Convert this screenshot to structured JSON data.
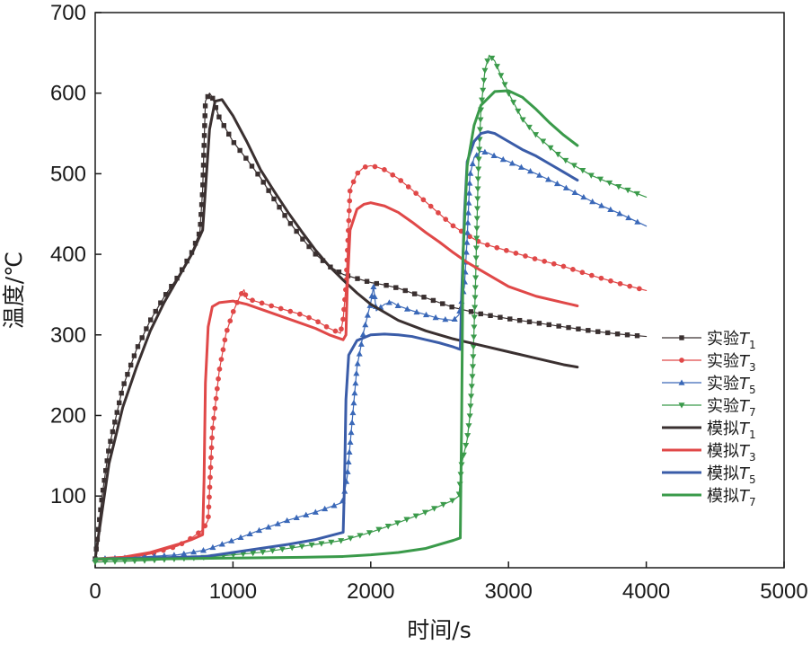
{
  "chart_data": {
    "type": "line",
    "title": "",
    "xlabel": "时间/s",
    "ylabel": "温度/℃",
    "xlim": [
      0,
      5000
    ],
    "ylim": [
      11,
      700
    ],
    "x_ticks": [
      0,
      1000,
      2000,
      3000,
      4000,
      5000
    ],
    "y_ticks": [
      100,
      200,
      300,
      400,
      500,
      600,
      700
    ],
    "grid": false,
    "legend_position": "right",
    "series": [
      {
        "name": "实验T1",
        "label_prefix": "实验",
        "label_var": "T",
        "label_sub": "1",
        "color": "#3a3030",
        "style": "experiment",
        "marker": "square",
        "points": [
          [
            0,
            22
          ],
          [
            50,
            100
          ],
          [
            100,
            160
          ],
          [
            200,
            235
          ],
          [
            300,
            282
          ],
          [
            400,
            318
          ],
          [
            500,
            347
          ],
          [
            600,
            372
          ],
          [
            700,
            402
          ],
          [
            760,
            428
          ],
          [
            780,
            480
          ],
          [
            800,
            590
          ],
          [
            830,
            600
          ],
          [
            850,
            595
          ],
          [
            900,
            570
          ],
          [
            1000,
            540
          ],
          [
            1100,
            518
          ],
          [
            1200,
            495
          ],
          [
            1300,
            468
          ],
          [
            1400,
            442
          ],
          [
            1500,
            420
          ],
          [
            1600,
            400
          ],
          [
            1700,
            385
          ],
          [
            1800,
            375
          ],
          [
            1900,
            370
          ],
          [
            2000,
            365
          ],
          [
            2100,
            362
          ],
          [
            2200,
            358
          ],
          [
            2300,
            352
          ],
          [
            2400,
            346
          ],
          [
            2500,
            340
          ],
          [
            2600,
            334
          ],
          [
            2700,
            330
          ],
          [
            2800,
            326
          ],
          [
            2900,
            323
          ],
          [
            3000,
            320
          ],
          [
            3200,
            315
          ],
          [
            3400,
            310
          ],
          [
            3600,
            305
          ],
          [
            3800,
            301
          ],
          [
            4000,
            298
          ]
        ]
      },
      {
        "name": "实验T3",
        "label_prefix": "实验",
        "label_var": "T",
        "label_sub": "3",
        "color": "#e04848",
        "style": "experiment",
        "marker": "circle",
        "points": [
          [
            0,
            20
          ],
          [
            200,
            22
          ],
          [
            400,
            28
          ],
          [
            600,
            38
          ],
          [
            700,
            48
          ],
          [
            780,
            58
          ],
          [
            820,
            70
          ],
          [
            850,
            180
          ],
          [
            900,
            255
          ],
          [
            950,
            302
          ],
          [
            1000,
            328
          ],
          [
            1050,
            348
          ],
          [
            1080,
            356
          ],
          [
            1100,
            345
          ],
          [
            1200,
            340
          ],
          [
            1300,
            335
          ],
          [
            1400,
            330
          ],
          [
            1500,
            325
          ],
          [
            1600,
            318
          ],
          [
            1700,
            308
          ],
          [
            1780,
            302
          ],
          [
            1800,
            320
          ],
          [
            1820,
            360
          ],
          [
            1850,
            480
          ],
          [
            1900,
            500
          ],
          [
            1950,
            508
          ],
          [
            2000,
            510
          ],
          [
            2050,
            508
          ],
          [
            2100,
            505
          ],
          [
            2200,
            494
          ],
          [
            2300,
            480
          ],
          [
            2400,
            465
          ],
          [
            2500,
            450
          ],
          [
            2600,
            435
          ],
          [
            2700,
            424
          ],
          [
            2800,
            414
          ],
          [
            3000,
            404
          ],
          [
            3200,
            394
          ],
          [
            3400,
            385
          ],
          [
            3600,
            374
          ],
          [
            3800,
            364
          ],
          [
            4000,
            355
          ]
        ]
      },
      {
        "name": "实验T5",
        "label_prefix": "实验",
        "label_var": "T",
        "label_sub": "5",
        "color": "#3a68b8",
        "style": "experiment",
        "marker": "triangle-up",
        "points": [
          [
            0,
            22
          ],
          [
            300,
            24
          ],
          [
            600,
            27
          ],
          [
            800,
            33
          ],
          [
            1000,
            45
          ],
          [
            1200,
            58
          ],
          [
            1400,
            70
          ],
          [
            1600,
            80
          ],
          [
            1780,
            91
          ],
          [
            1800,
            95
          ],
          [
            1830,
            125
          ],
          [
            1900,
            260
          ],
          [
            1950,
            305
          ],
          [
            2000,
            340
          ],
          [
            2020,
            360
          ],
          [
            2040,
            330
          ],
          [
            2100,
            338
          ],
          [
            2150,
            341
          ],
          [
            2200,
            336
          ],
          [
            2300,
            330
          ],
          [
            2400,
            325
          ],
          [
            2500,
            320
          ],
          [
            2600,
            318
          ],
          [
            2640,
            325
          ],
          [
            2680,
            360
          ],
          [
            2700,
            420
          ],
          [
            2720,
            498
          ],
          [
            2750,
            520
          ],
          [
            2800,
            528
          ],
          [
            2850,
            526
          ],
          [
            2900,
            522
          ],
          [
            3000,
            515
          ],
          [
            3200,
            500
          ],
          [
            3400,
            484
          ],
          [
            3600,
            466
          ],
          [
            3800,
            451
          ],
          [
            4000,
            435
          ]
        ]
      },
      {
        "name": "实验T7",
        "label_prefix": "实验",
        "label_var": "T",
        "label_sub": "7",
        "color": "#3a9a4a",
        "style": "experiment",
        "marker": "triangle-down",
        "points": [
          [
            0,
            18
          ],
          [
            400,
            20
          ],
          [
            800,
            24
          ],
          [
            1200,
            30
          ],
          [
            1600,
            40
          ],
          [
            1800,
            45
          ],
          [
            2000,
            55
          ],
          [
            2200,
            67
          ],
          [
            2400,
            80
          ],
          [
            2600,
            95
          ],
          [
            2640,
            100
          ],
          [
            2660,
            140
          ],
          [
            2700,
            170
          ],
          [
            2720,
            200
          ],
          [
            2740,
            255
          ],
          [
            2760,
            360
          ],
          [
            2780,
            500
          ],
          [
            2800,
            580
          ],
          [
            2830,
            630
          ],
          [
            2860,
            647
          ],
          [
            2900,
            640
          ],
          [
            3000,
            600
          ],
          [
            3100,
            568
          ],
          [
            3200,
            548
          ],
          [
            3300,
            533
          ],
          [
            3400,
            518
          ],
          [
            3600,
            498
          ],
          [
            3800,
            484
          ],
          [
            4000,
            471
          ]
        ]
      },
      {
        "name": "模拟T1",
        "label_prefix": "模拟",
        "label_var": "T",
        "label_sub": "1",
        "color": "#3a3030",
        "style": "simulation",
        "marker": "none",
        "points": [
          [
            0,
            22
          ],
          [
            100,
            140
          ],
          [
            200,
            210
          ],
          [
            300,
            260
          ],
          [
            400,
            305
          ],
          [
            500,
            340
          ],
          [
            600,
            370
          ],
          [
            700,
            400
          ],
          [
            780,
            430
          ],
          [
            800,
            480
          ],
          [
            830,
            555
          ],
          [
            870,
            590
          ],
          [
            920,
            592
          ],
          [
            1000,
            572
          ],
          [
            1100,
            540
          ],
          [
            1200,
            505
          ],
          [
            1300,
            478
          ],
          [
            1400,
            452
          ],
          [
            1500,
            428
          ],
          [
            1600,
            405
          ],
          [
            1700,
            385
          ],
          [
            1800,
            368
          ],
          [
            1900,
            352
          ],
          [
            2000,
            338
          ],
          [
            2200,
            318
          ],
          [
            2400,
            305
          ],
          [
            2600,
            295
          ],
          [
            2800,
            287
          ],
          [
            3000,
            279
          ],
          [
            3200,
            271
          ],
          [
            3400,
            263
          ],
          [
            3500,
            260
          ]
        ]
      },
      {
        "name": "模拟T3",
        "label_prefix": "模拟",
        "label_var": "T",
        "label_sub": "3",
        "color": "#e04848",
        "style": "simulation",
        "marker": "none",
        "points": [
          [
            0,
            22
          ],
          [
            200,
            24
          ],
          [
            400,
            30
          ],
          [
            600,
            40
          ],
          [
            700,
            46
          ],
          [
            780,
            52
          ],
          [
            790,
            120
          ],
          [
            800,
            240
          ],
          [
            820,
            310
          ],
          [
            850,
            335
          ],
          [
            900,
            340
          ],
          [
            1000,
            342
          ],
          [
            1100,
            338
          ],
          [
            1200,
            332
          ],
          [
            1300,
            326
          ],
          [
            1400,
            320
          ],
          [
            1500,
            314
          ],
          [
            1600,
            308
          ],
          [
            1700,
            300
          ],
          [
            1800,
            294
          ],
          [
            1820,
            300
          ],
          [
            1830,
            360
          ],
          [
            1850,
            430
          ],
          [
            1900,
            456
          ],
          [
            1950,
            462
          ],
          [
            2000,
            464
          ],
          [
            2100,
            460
          ],
          [
            2200,
            452
          ],
          [
            2300,
            440
          ],
          [
            2400,
            427
          ],
          [
            2500,
            415
          ],
          [
            2600,
            402
          ],
          [
            2700,
            390
          ],
          [
            2800,
            380
          ],
          [
            3000,
            360
          ],
          [
            3200,
            348
          ],
          [
            3400,
            340
          ],
          [
            3500,
            336
          ]
        ]
      },
      {
        "name": "模拟T5",
        "label_prefix": "模拟",
        "label_var": "T",
        "label_sub": "5",
        "color": "#3a5ca8",
        "style": "simulation",
        "marker": "none",
        "points": [
          [
            0,
            22
          ],
          [
            400,
            23
          ],
          [
            800,
            25
          ],
          [
            1000,
            30
          ],
          [
            1200,
            35
          ],
          [
            1400,
            40
          ],
          [
            1600,
            46
          ],
          [
            1800,
            55
          ],
          [
            1810,
            120
          ],
          [
            1820,
            220
          ],
          [
            1840,
            275
          ],
          [
            1900,
            293
          ],
          [
            2000,
            300
          ],
          [
            2100,
            301
          ],
          [
            2200,
            300
          ],
          [
            2300,
            298
          ],
          [
            2400,
            294
          ],
          [
            2500,
            290
          ],
          [
            2600,
            285
          ],
          [
            2650,
            282
          ],
          [
            2660,
            350
          ],
          [
            2680,
            450
          ],
          [
            2700,
            515
          ],
          [
            2750,
            540
          ],
          [
            2800,
            550
          ],
          [
            2850,
            552
          ],
          [
            2900,
            550
          ],
          [
            3000,
            540
          ],
          [
            3100,
            530
          ],
          [
            3200,
            522
          ],
          [
            3300,
            512
          ],
          [
            3400,
            502
          ],
          [
            3500,
            492
          ]
        ]
      },
      {
        "name": "模拟T7",
        "label_prefix": "模拟",
        "label_var": "T",
        "label_sub": "7",
        "color": "#3a9a4a",
        "style": "simulation",
        "marker": "none",
        "points": [
          [
            0,
            22
          ],
          [
            500,
            22
          ],
          [
            1000,
            23
          ],
          [
            1500,
            24
          ],
          [
            1800,
            25
          ],
          [
            2000,
            27
          ],
          [
            2200,
            30
          ],
          [
            2400,
            35
          ],
          [
            2600,
            45
          ],
          [
            2650,
            48
          ],
          [
            2660,
            200
          ],
          [
            2670,
            400
          ],
          [
            2700,
            510
          ],
          [
            2750,
            560
          ],
          [
            2800,
            585
          ],
          [
            2900,
            602
          ],
          [
            3000,
            603
          ],
          [
            3100,
            595
          ],
          [
            3200,
            580
          ],
          [
            3300,
            563
          ],
          [
            3400,
            548
          ],
          [
            3500,
            535
          ]
        ]
      }
    ]
  }
}
